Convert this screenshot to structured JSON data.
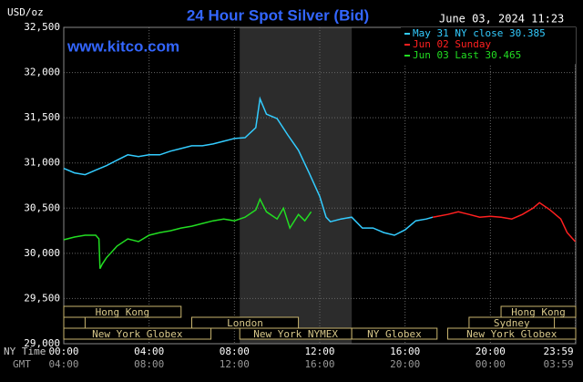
{
  "chart_data": {
    "type": "line",
    "title": "24 Hour Spot Silver (Bid)",
    "timestamp": "June 03, 2024 11:23",
    "watermark": "www.kitco.com",
    "y_label": "USD/oz",
    "x_label": "NY Time",
    "x2_label": "GMT",
    "xlim": [
      0,
      24
    ],
    "ylim": [
      29000,
      32500
    ],
    "yticks": [
      {
        "value": 29000,
        "label": "29,000"
      },
      {
        "value": 29500,
        "label": "29,500"
      },
      {
        "value": 30000,
        "label": "30,000"
      },
      {
        "value": 30500,
        "label": "30,500"
      },
      {
        "value": 31000,
        "label": "31,000"
      },
      {
        "value": 31500,
        "label": "31,500"
      },
      {
        "value": 32000,
        "label": "32,000"
      },
      {
        "value": 32500,
        "label": "32,500"
      }
    ],
    "xticks": [
      {
        "value": 0,
        "label": "00:00"
      },
      {
        "value": 4,
        "label": "04:00"
      },
      {
        "value": 8,
        "label": "08:00"
      },
      {
        "value": 12,
        "label": "12:00"
      },
      {
        "value": 16,
        "label": "16:00"
      },
      {
        "value": 20,
        "label": "20:00"
      },
      {
        "value": 23.983,
        "label": "23:59"
      }
    ],
    "x2ticks": [
      {
        "value": 0,
        "label": "04:00"
      },
      {
        "value": 4,
        "label": "08:00"
      },
      {
        "value": 8,
        "label": "12:00"
      },
      {
        "value": 12,
        "label": "16:00"
      },
      {
        "value": 16,
        "label": "20:00"
      },
      {
        "value": 20,
        "label": "00:00"
      },
      {
        "value": 23.983,
        "label": "03:59"
      }
    ],
    "grid": true,
    "shaded_range": [
      8.25,
      13.5
    ],
    "session_rows": [
      [
        {
          "label": "Hong Kong",
          "start": 0,
          "end": 5.5
        },
        {
          "label": "Hong Kong",
          "start": 20.5,
          "end": 24
        }
      ],
      [
        {
          "label": null,
          "start": 0,
          "end": 1
        },
        {
          "label": "London",
          "start": 6,
          "end": 11
        },
        {
          "label": "Sydney",
          "start": 19,
          "end": 23
        }
      ],
      [
        {
          "label": "New York Globex",
          "start": 0,
          "end": 6.9
        },
        {
          "label": "New York NYMEX",
          "start": 8.25,
          "end": 13.5
        },
        {
          "label": "NY Globex",
          "start": 13.5,
          "end": 17.5
        },
        {
          "label": "New York Globex",
          "start": 18,
          "end": 24
        }
      ]
    ],
    "series": [
      {
        "name": "May 31 NY close 30.385",
        "color": "#33ccff",
        "x": [
          0,
          0.5,
          1,
          1.5,
          2,
          2.5,
          3,
          3.5,
          4,
          4.5,
          5,
          5.5,
          6,
          6.5,
          7,
          7.5,
          8,
          8.5,
          9,
          9.2,
          9.5,
          10,
          10.5,
          11,
          11.5,
          12,
          12.3,
          12.5,
          13,
          13.5,
          14,
          14.5,
          15,
          15.5,
          16,
          16.5,
          17,
          17.3
        ],
        "values": [
          30940,
          30890,
          30870,
          30920,
          30970,
          31030,
          31090,
          31070,
          31090,
          31090,
          31130,
          31160,
          31190,
          31190,
          31210,
          31240,
          31270,
          31280,
          31390,
          31710,
          31540,
          31490,
          31310,
          31140,
          30890,
          30630,
          30400,
          30350,
          30380,
          30400,
          30280,
          30280,
          30230,
          30200,
          30260,
          30360,
          30380,
          30400
        ]
      },
      {
        "name": "Jun 02 Sunday",
        "color": "#ff2020",
        "x": [
          17.3,
          18,
          18.5,
          19,
          19.5,
          20,
          20.5,
          21,
          21.5,
          22,
          22.3,
          22.8,
          23.3,
          23.6,
          23.98
        ],
        "values": [
          30400,
          30430,
          30460,
          30430,
          30400,
          30410,
          30400,
          30380,
          30430,
          30500,
          30560,
          30480,
          30380,
          30230,
          30130
        ]
      },
      {
        "name": "Jun 03 Last 30.465",
        "color": "#22dd22",
        "x": [
          0,
          0.5,
          1,
          1.5,
          1.65,
          1.7,
          1.8,
          2,
          2.5,
          3,
          3.5,
          4,
          4.5,
          5,
          5.5,
          6,
          6.5,
          7,
          7.5,
          8,
          8.5,
          9,
          9.2,
          9.5,
          10,
          10.3,
          10.6,
          11,
          11.3,
          11.6
        ],
        "values": [
          30150,
          30180,
          30200,
          30200,
          30160,
          29830,
          29880,
          29950,
          30080,
          30160,
          30130,
          30200,
          30230,
          30250,
          30280,
          30300,
          30330,
          30360,
          30380,
          30360,
          30400,
          30480,
          30600,
          30460,
          30380,
          30500,
          30280,
          30430,
          30360,
          30460
        ]
      }
    ]
  }
}
